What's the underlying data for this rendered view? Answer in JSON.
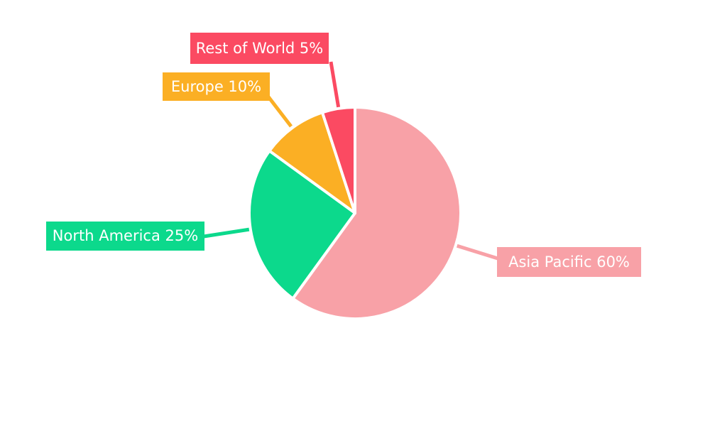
{
  "chart_data": {
    "type": "pie",
    "title": "",
    "direction": "clockwise",
    "start_angle_deg": 0,
    "background": "#ffffff",
    "label_text_color": "#ffffff",
    "slice_gap_color": "#ffffff",
    "slices": [
      {
        "label": "Asia Pacific",
        "value": 60,
        "percent_text": "60%",
        "display": "Asia Pacific 60%",
        "color": "#F8A1A7"
      },
      {
        "label": "North America",
        "value": 25,
        "percent_text": "25%",
        "display": "North America 25%",
        "color": "#0CD98C"
      },
      {
        "label": "Europe",
        "value": 10,
        "percent_text": "10%",
        "display": "Europe 10%",
        "color": "#FBAF24"
      },
      {
        "label": "Rest of World",
        "value": 5,
        "percent_text": "5%",
        "display": "Rest of World 5%",
        "color": "#FB4A62"
      }
    ]
  }
}
